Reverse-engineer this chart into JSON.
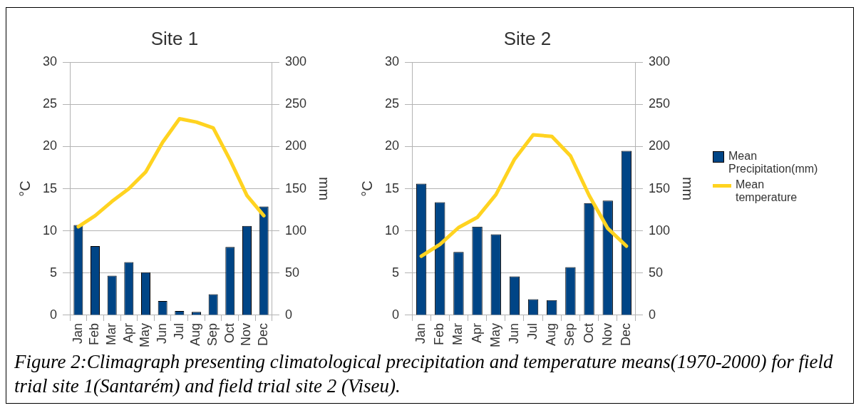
{
  "chart_data": [
    {
      "type": "bar",
      "title": "Site 1",
      "ylabel": "°C",
      "y2label": "mm",
      "categories": [
        "Jan",
        "Feb",
        "Mar",
        "Apr",
        "May",
        "Jun",
        "Jul",
        "Aug",
        "Sep",
        "Oct",
        "Nov",
        "Dec"
      ],
      "series": [
        {
          "axis": "y2",
          "color": "#004586",
          "values": [
            107,
            82,
            47,
            63,
            51,
            17,
            5,
            4,
            25,
            81,
            106,
            129
          ]
        },
        {
          "type": "line",
          "color": "#ffd320",
          "values": [
            10.5,
            11.8,
            13.5,
            15.0,
            17.0,
            20.5,
            23.3,
            22.9,
            22.2,
            18.4,
            14.2,
            11.8
          ]
        }
      ],
      "ylim": [
        0,
        30
      ],
      "yticks": [
        0,
        5,
        10,
        15,
        20,
        25,
        30
      ],
      "y2lim": [
        0,
        300
      ],
      "y2ticks": [
        0,
        50,
        100,
        150,
        200,
        250,
        300
      ],
      "grid": "y",
      "legend": false,
      "annotations": [
        "Figure 2:Climagraph presenting climatological precipitation and temperature means(1970-2000) for field trial site 1(Santarém) and field trial site 2 (Viseu)."
      ]
    },
    {
      "type": "bar",
      "title": "Site 2",
      "ylabel": "°C",
      "y2label": "mm",
      "categories": [
        "Jan",
        "Feb",
        "Mar",
        "Apr",
        "May",
        "Jun",
        "Jul",
        "Aug",
        "Sep",
        "Oct",
        "Nov",
        "Dec"
      ],
      "series": [
        {
          "axis": "y2",
          "name": "Mean Precipitation(mm)",
          "color": "#004586",
          "values": [
            156,
            134,
            75,
            105,
            96,
            46,
            19,
            18,
            57,
            133,
            136,
            195
          ]
        },
        {
          "type": "line",
          "name": "Mean temperature",
          "color": "#ffd320",
          "values": [
            7.0,
            8.4,
            10.4,
            11.6,
            14.3,
            18.5,
            21.4,
            21.2,
            18.9,
            14.2,
            10.3,
            8.2
          ]
        }
      ],
      "ylim": [
        0,
        30
      ],
      "yticks": [
        0,
        5,
        10,
        15,
        20,
        25,
        30
      ],
      "y2lim": [
        0,
        300
      ],
      "y2ticks": [
        0,
        50,
        100,
        150,
        200,
        250,
        300
      ],
      "grid": "y",
      "legend": "right"
    }
  ]
}
